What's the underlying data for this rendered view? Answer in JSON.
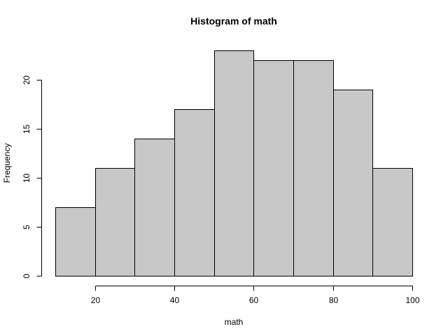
{
  "chart_data": {
    "type": "bar",
    "title": "Histogram of math",
    "xlabel": "math",
    "ylabel": "Frequency",
    "bins": [
      {
        "start": 10,
        "end": 20,
        "count": 7
      },
      {
        "start": 20,
        "end": 30,
        "count": 11
      },
      {
        "start": 30,
        "end": 40,
        "count": 14
      },
      {
        "start": 40,
        "end": 50,
        "count": 17
      },
      {
        "start": 50,
        "end": 60,
        "count": 23
      },
      {
        "start": 60,
        "end": 70,
        "count": 22
      },
      {
        "start": 70,
        "end": 80,
        "count": 22
      },
      {
        "start": 80,
        "end": 90,
        "count": 19
      },
      {
        "start": 90,
        "end": 100,
        "count": 11
      }
    ],
    "xticks": [
      20,
      40,
      60,
      80,
      100
    ],
    "yticks": [
      0,
      5,
      10,
      15,
      20
    ],
    "xlim": [
      10,
      100
    ],
    "ylim": [
      0,
      23
    ],
    "grid": false,
    "legend": "none",
    "colors": {
      "bar_fill": "#c8c8c8",
      "bar_stroke": "#000000",
      "background": "#ffffff"
    }
  }
}
